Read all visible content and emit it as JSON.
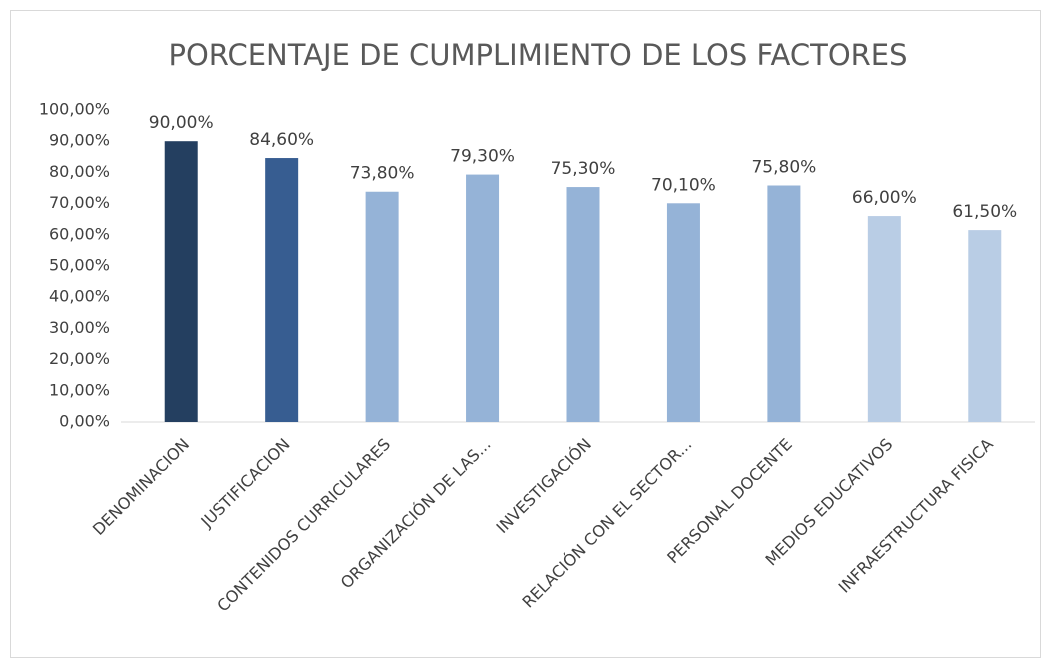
{
  "chart_data": {
    "type": "bar",
    "title": "PORCENTAJE DE CUMPLIMIENTO DE LOS FACTORES",
    "categories": [
      "DENOMINACION",
      "JUSTIFICACION",
      "CONTENIDOS CURRICULARES",
      "ORGANIZACIÓN DE LAS...",
      "INVESTIGACIÓN",
      "RELACIÓN CON EL SECTOR...",
      "PERSONAL DOCENTE",
      "MEDIOS EDUCATIVOS",
      "INFRAESTRUCTURA FISICA"
    ],
    "values": [
      90,
      84.6,
      73.8,
      79.3,
      75.3,
      70.1,
      75.8,
      66,
      61.5
    ],
    "value_labels": [
      "90,00%",
      "84,60%",
      "73,80%",
      "79,30%",
      "75,30%",
      "70,10%",
      "75,80%",
      "66,00%",
      "61,50%"
    ],
    "colors": [
      "#243f60",
      "#375d91",
      "#95b3d7",
      "#95b3d7",
      "#95b3d7",
      "#95b3d7",
      "#95b3d7",
      "#b9cde5",
      "#b9cde5"
    ],
    "ylim": [
      0,
      100
    ],
    "yticks": [
      {
        "value": 0,
        "label": "0,00%"
      },
      {
        "value": 10,
        "label": "10,00%"
      },
      {
        "value": 20,
        "label": "20,00%"
      },
      {
        "value": 30,
        "label": "30,00%"
      },
      {
        "value": 40,
        "label": "40,00%"
      },
      {
        "value": 50,
        "label": "50,00%"
      },
      {
        "value": 60,
        "label": "60,00%"
      },
      {
        "value": 70,
        "label": "70,00%"
      },
      {
        "value": 80,
        "label": "80,00%"
      },
      {
        "value": 90,
        "label": "90,00%"
      },
      {
        "value": 100,
        "label": "100,00%"
      }
    ],
    "grid": false
  }
}
